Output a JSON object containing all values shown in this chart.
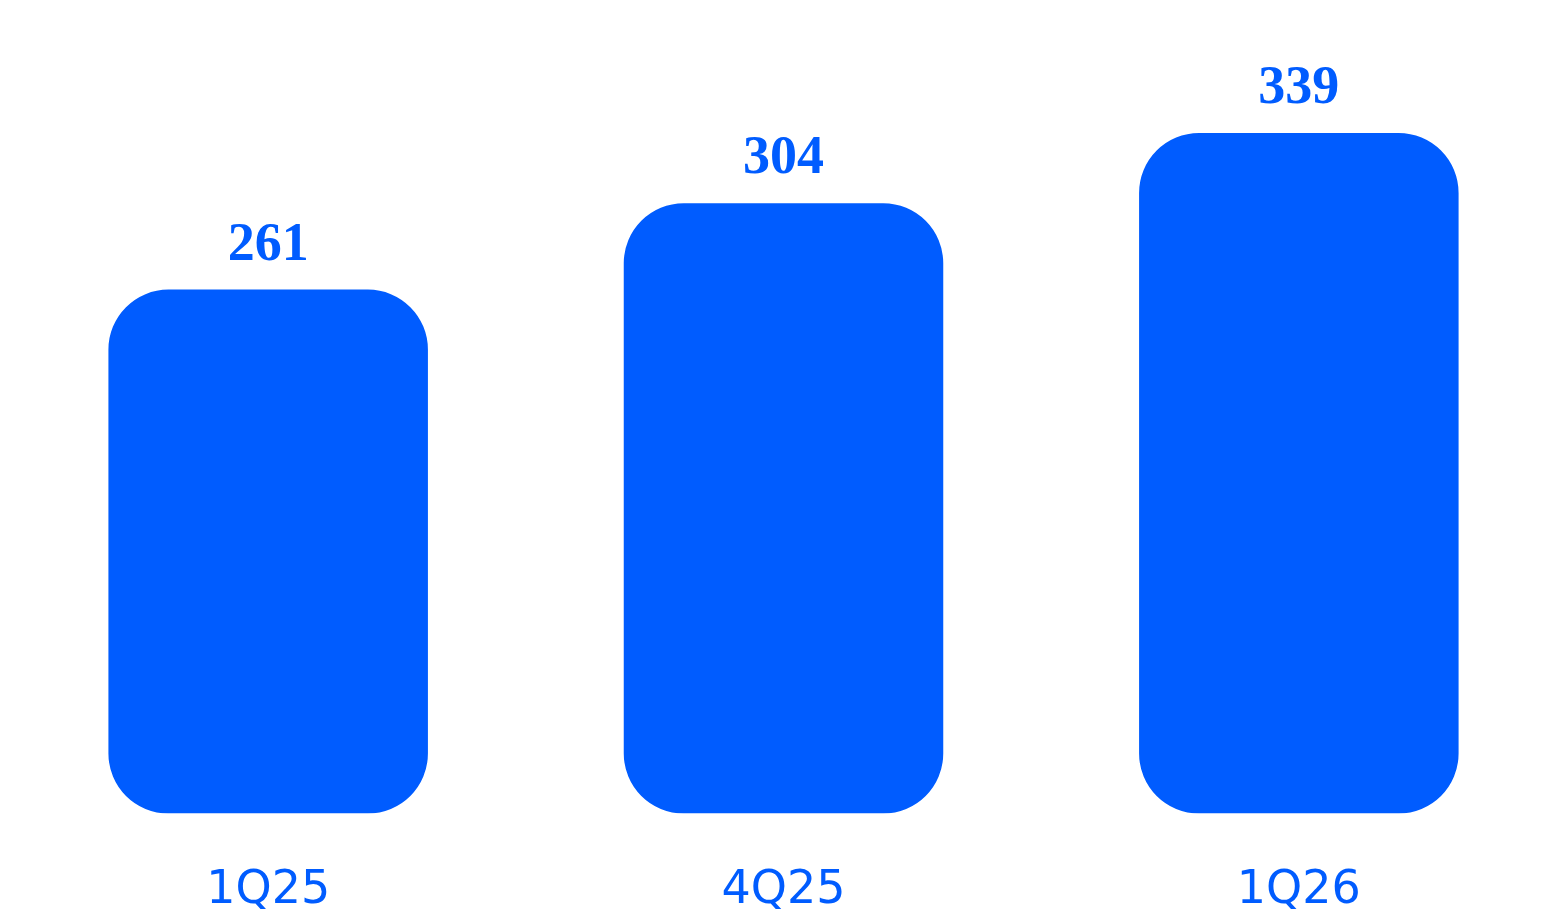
{
  "chart_data": {
    "type": "bar",
    "categories": [
      "1Q25",
      "4Q25",
      "1Q26"
    ],
    "values": [
      261,
      304,
      339
    ],
    "color": "#005cff",
    "data_labels": true
  }
}
